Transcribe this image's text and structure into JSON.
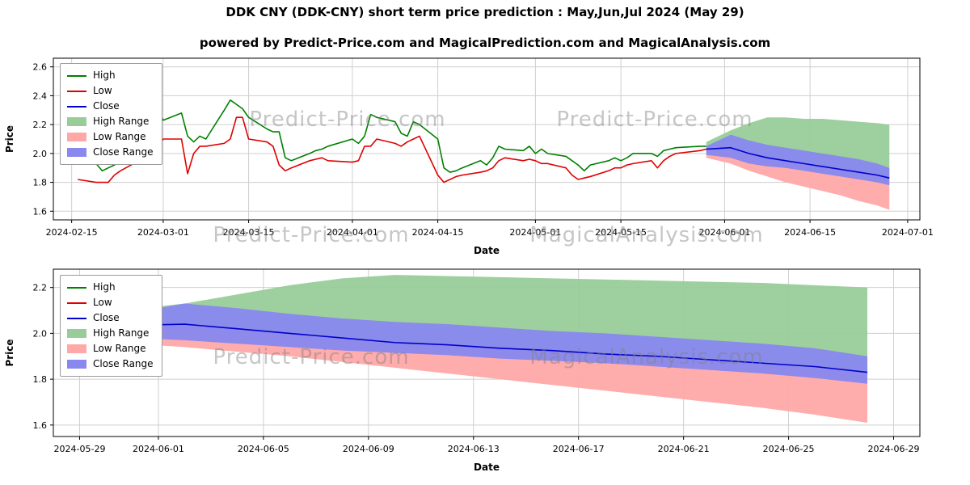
{
  "page": {
    "title": "DDK CNY (DDK-CNY) short term price prediction : May,Jun,Jul 2024 (May 29)",
    "subtitle": "powered by Predict-Price.com and MagicalPrediction.com and MagicalAnalysis.com"
  },
  "watermarks": {
    "top_left": "Predict-Price.com",
    "top_right": "Predict-Price.com",
    "mid_left": "Predict-Price.com",
    "mid_right": "MagicalAnalysis.com",
    "bottom_left": "Predict-Price.com",
    "bottom_right": "MagicalAnalysis.com"
  },
  "colors": {
    "high": "#008000",
    "low": "#e00000",
    "close": "#0000cd",
    "high_range": "#99cc99",
    "low_range": "#ffa8a8",
    "close_range": "#8888ee",
    "grid": "#cfcfcf"
  },
  "chart_data": [
    {
      "type": "line",
      "title": "",
      "xlabel": "Date",
      "ylabel": "Price",
      "ylim": [
        1.54,
        2.66
      ],
      "yticks": [
        1.6,
        1.8,
        2.0,
        2.2,
        2.4,
        2.6
      ],
      "xlim": [
        "2024-02-12",
        "2024-07-03"
      ],
      "xticks": [
        "2024-02-15",
        "2024-03-01",
        "2024-03-15",
        "2024-04-01",
        "2024-04-15",
        "2024-05-01",
        "2024-05-15",
        "2024-06-01",
        "2024-06-15",
        "2024-07-01"
      ],
      "bands": [
        {
          "name": "High Range",
          "color": "#99cc99",
          "x": [
            "2024-05-29",
            "2024-06-02",
            "2024-06-05",
            "2024-06-08",
            "2024-06-11",
            "2024-06-14",
            "2024-06-17",
            "2024-06-20",
            "2024-06-23",
            "2024-06-26",
            "2024-06-28"
          ],
          "upper": [
            2.08,
            2.16,
            2.21,
            2.25,
            2.25,
            2.24,
            2.24,
            2.23,
            2.22,
            2.21,
            2.2
          ],
          "lower": [
            2.0,
            2.04,
            2.0,
            1.97,
            1.95,
            1.93,
            1.91,
            1.89,
            1.87,
            1.85,
            1.83
          ]
        },
        {
          "name": "Low Range",
          "color": "#ffa8a8",
          "x": [
            "2024-05-29",
            "2024-06-02",
            "2024-06-05",
            "2024-06-08",
            "2024-06-11",
            "2024-06-14",
            "2024-06-17",
            "2024-06-20",
            "2024-06-23",
            "2024-06-26",
            "2024-06-28"
          ],
          "upper": [
            2.02,
            2.04,
            2.0,
            1.97,
            1.95,
            1.93,
            1.91,
            1.89,
            1.87,
            1.85,
            1.83
          ],
          "lower": [
            1.97,
            1.93,
            1.88,
            1.84,
            1.8,
            1.77,
            1.74,
            1.71,
            1.67,
            1.64,
            1.61
          ]
        },
        {
          "name": "Close Range",
          "color": "#8888ee",
          "x": [
            "2024-05-29",
            "2024-06-02",
            "2024-06-05",
            "2024-06-08",
            "2024-06-11",
            "2024-06-14",
            "2024-06-17",
            "2024-06-20",
            "2024-06-23",
            "2024-06-26",
            "2024-06-28"
          ],
          "upper": [
            2.05,
            2.13,
            2.09,
            2.06,
            2.04,
            2.02,
            2.0,
            1.98,
            1.96,
            1.93,
            1.9
          ],
          "lower": [
            1.99,
            1.97,
            1.93,
            1.91,
            1.9,
            1.88,
            1.86,
            1.84,
            1.82,
            1.8,
            1.78
          ]
        }
      ],
      "series": [
        {
          "name": "High",
          "color": "#008000",
          "x": [
            "2024-02-16",
            "2024-02-19",
            "2024-02-20",
            "2024-02-21",
            "2024-02-22",
            "2024-02-23",
            "2024-02-26",
            "2024-02-27",
            "2024-02-28",
            "2024-02-29",
            "2024-03-01",
            "2024-03-04",
            "2024-03-05",
            "2024-03-06",
            "2024-03-07",
            "2024-03-08",
            "2024-03-11",
            "2024-03-12",
            "2024-03-13",
            "2024-03-14",
            "2024-03-15",
            "2024-03-18",
            "2024-03-19",
            "2024-03-20",
            "2024-03-21",
            "2024-03-22",
            "2024-03-25",
            "2024-03-26",
            "2024-03-27",
            "2024-03-28",
            "2024-04-01",
            "2024-04-02",
            "2024-04-03",
            "2024-04-04",
            "2024-04-05",
            "2024-04-08",
            "2024-04-09",
            "2024-04-10",
            "2024-04-11",
            "2024-04-12",
            "2024-04-15",
            "2024-04-16",
            "2024-04-17",
            "2024-04-18",
            "2024-04-19",
            "2024-04-22",
            "2024-04-23",
            "2024-04-24",
            "2024-04-25",
            "2024-04-26",
            "2024-04-29",
            "2024-04-30",
            "2024-05-01",
            "2024-05-02",
            "2024-05-03",
            "2024-05-06",
            "2024-05-07",
            "2024-05-08",
            "2024-05-09",
            "2024-05-10",
            "2024-05-13",
            "2024-05-14",
            "2024-05-15",
            "2024-05-16",
            "2024-05-17",
            "2024-05-20",
            "2024-05-21",
            "2024-05-22",
            "2024-05-23",
            "2024-05-24",
            "2024-05-28",
            "2024-05-29"
          ],
          "y": [
            2.6,
            1.93,
            1.88,
            1.9,
            1.92,
            1.95,
            2.05,
            2.1,
            2.18,
            2.3,
            2.23,
            2.28,
            2.12,
            2.08,
            2.12,
            2.1,
            2.3,
            2.37,
            2.34,
            2.31,
            2.25,
            2.17,
            2.15,
            2.15,
            1.97,
            1.95,
            2.0,
            2.02,
            2.03,
            2.05,
            2.1,
            2.07,
            2.12,
            2.27,
            2.25,
            2.22,
            2.14,
            2.12,
            2.22,
            2.2,
            2.1,
            1.9,
            1.87,
            1.88,
            1.9,
            1.95,
            1.92,
            1.97,
            2.05,
            2.03,
            2.02,
            2.05,
            2.0,
            2.03,
            2.0,
            1.98,
            1.95,
            1.92,
            1.88,
            1.92,
            1.95,
            1.97,
            1.95,
            1.97,
            2.0,
            2.0,
            1.98,
            2.02,
            2.03,
            2.04,
            2.05,
            2.05
          ]
        },
        {
          "name": "Low",
          "color": "#e00000",
          "x": [
            "2024-02-16",
            "2024-02-19",
            "2024-02-20",
            "2024-02-21",
            "2024-02-22",
            "2024-02-23",
            "2024-02-26",
            "2024-02-27",
            "2024-02-28",
            "2024-02-29",
            "2024-03-01",
            "2024-03-04",
            "2024-03-05",
            "2024-03-06",
            "2024-03-07",
            "2024-03-08",
            "2024-03-11",
            "2024-03-12",
            "2024-03-13",
            "2024-03-14",
            "2024-03-15",
            "2024-03-18",
            "2024-03-19",
            "2024-03-20",
            "2024-03-21",
            "2024-03-22",
            "2024-03-25",
            "2024-03-26",
            "2024-03-27",
            "2024-03-28",
            "2024-04-01",
            "2024-04-02",
            "2024-04-03",
            "2024-04-04",
            "2024-04-05",
            "2024-04-08",
            "2024-04-09",
            "2024-04-10",
            "2024-04-11",
            "2024-04-12",
            "2024-04-15",
            "2024-04-16",
            "2024-04-17",
            "2024-04-18",
            "2024-04-19",
            "2024-04-22",
            "2024-04-23",
            "2024-04-24",
            "2024-04-25",
            "2024-04-26",
            "2024-04-29",
            "2024-04-30",
            "2024-05-01",
            "2024-05-02",
            "2024-05-03",
            "2024-05-06",
            "2024-05-07",
            "2024-05-08",
            "2024-05-09",
            "2024-05-10",
            "2024-05-13",
            "2024-05-14",
            "2024-05-15",
            "2024-05-16",
            "2024-05-17",
            "2024-05-20",
            "2024-05-21",
            "2024-05-22",
            "2024-05-23",
            "2024-05-24",
            "2024-05-28",
            "2024-05-29"
          ],
          "y": [
            1.82,
            1.8,
            1.8,
            1.8,
            1.85,
            1.88,
            1.95,
            2.0,
            2.02,
            2.05,
            2.1,
            2.1,
            1.86,
            2.0,
            2.05,
            2.05,
            2.07,
            2.1,
            2.25,
            2.25,
            2.1,
            2.08,
            2.05,
            1.92,
            1.88,
            1.9,
            1.95,
            1.96,
            1.97,
            1.95,
            1.94,
            1.95,
            2.05,
            2.05,
            2.1,
            2.07,
            2.05,
            2.08,
            2.1,
            2.12,
            1.85,
            1.8,
            1.82,
            1.84,
            1.85,
            1.87,
            1.88,
            1.9,
            1.95,
            1.97,
            1.95,
            1.96,
            1.95,
            1.93,
            1.93,
            1.9,
            1.85,
            1.82,
            1.83,
            1.84,
            1.88,
            1.9,
            1.9,
            1.92,
            1.93,
            1.95,
            1.9,
            1.95,
            1.98,
            2.0,
            2.02,
            2.03
          ]
        },
        {
          "name": "Close",
          "color": "#0000cd",
          "x": [
            "2024-05-29",
            "2024-06-02",
            "2024-06-05",
            "2024-06-08",
            "2024-06-11",
            "2024-06-14",
            "2024-06-17",
            "2024-06-20",
            "2024-06-23",
            "2024-06-26",
            "2024-06-28"
          ],
          "y": [
            2.03,
            2.04,
            2.0,
            1.97,
            1.95,
            1.93,
            1.91,
            1.89,
            1.87,
            1.85,
            1.83
          ]
        }
      ],
      "legend": [
        {
          "label": "High",
          "type": "line",
          "color": "#008000"
        },
        {
          "label": "Low",
          "type": "line",
          "color": "#e00000"
        },
        {
          "label": "Close",
          "type": "line",
          "color": "#0000cd"
        },
        {
          "label": "High Range",
          "type": "patch",
          "color": "#99cc99"
        },
        {
          "label": "Low Range",
          "type": "patch",
          "color": "#ffa8a8"
        },
        {
          "label": "Close Range",
          "type": "patch",
          "color": "#8888ee"
        }
      ]
    },
    {
      "type": "line",
      "title": "",
      "xlabel": "Date",
      "ylabel": "Price",
      "ylim": [
        1.55,
        2.28
      ],
      "yticks": [
        1.6,
        1.8,
        2.0,
        2.2
      ],
      "xlim": [
        "2024-05-28",
        "2024-06-30"
      ],
      "xticks": [
        "2024-05-29",
        "2024-06-01",
        "2024-06-05",
        "2024-06-09",
        "2024-06-13",
        "2024-06-17",
        "2024-06-21",
        "2024-06-25",
        "2024-06-29"
      ],
      "bands": [
        {
          "name": "High Range",
          "color": "#99cc99",
          "x": [
            "2024-05-29",
            "2024-05-31",
            "2024-06-02",
            "2024-06-04",
            "2024-06-06",
            "2024-06-08",
            "2024-06-10",
            "2024-06-12",
            "2024-06-14",
            "2024-06-16",
            "2024-06-18",
            "2024-06-20",
            "2024-06-22",
            "2024-06-24",
            "2024-06-26",
            "2024-06-28"
          ],
          "upper": [
            2.08,
            2.105,
            2.13,
            2.17,
            2.21,
            2.24,
            2.255,
            2.25,
            2.245,
            2.24,
            2.235,
            2.23,
            2.225,
            2.22,
            2.21,
            2.2
          ],
          "lower": [
            2.03,
            2.035,
            2.04,
            2.02,
            2.0,
            1.98,
            1.96,
            1.95,
            1.935,
            1.925,
            1.91,
            1.9,
            1.885,
            1.87,
            1.855,
            1.83
          ]
        },
        {
          "name": "Low Range",
          "color": "#ffa8a8",
          "x": [
            "2024-05-29",
            "2024-05-31",
            "2024-06-02",
            "2024-06-04",
            "2024-06-06",
            "2024-06-08",
            "2024-06-10",
            "2024-06-12",
            "2024-06-14",
            "2024-06-16",
            "2024-06-18",
            "2024-06-20",
            "2024-06-22",
            "2024-06-24",
            "2024-06-26",
            "2024-06-28"
          ],
          "upper": [
            2.03,
            2.035,
            2.04,
            2.02,
            2.0,
            1.98,
            1.96,
            1.95,
            1.935,
            1.925,
            1.91,
            1.9,
            1.885,
            1.87,
            1.855,
            1.83
          ],
          "lower": [
            1.97,
            1.955,
            1.94,
            1.92,
            1.9,
            1.875,
            1.85,
            1.825,
            1.8,
            1.775,
            1.75,
            1.725,
            1.7,
            1.675,
            1.645,
            1.61
          ]
        },
        {
          "name": "Close Range",
          "color": "#8888ee",
          "x": [
            "2024-05-29",
            "2024-05-31",
            "2024-06-02",
            "2024-06-04",
            "2024-06-06",
            "2024-06-08",
            "2024-06-10",
            "2024-06-12",
            "2024-06-14",
            "2024-06-16",
            "2024-06-18",
            "2024-06-20",
            "2024-06-22",
            "2024-06-24",
            "2024-06-26",
            "2024-06-28"
          ],
          "upper": [
            2.05,
            2.09,
            2.13,
            2.11,
            2.085,
            2.065,
            2.05,
            2.04,
            2.025,
            2.01,
            2.0,
            1.985,
            1.97,
            1.955,
            1.935,
            1.9
          ],
          "lower": [
            1.99,
            1.98,
            1.97,
            1.955,
            1.94,
            1.925,
            1.915,
            1.905,
            1.89,
            1.88,
            1.87,
            1.855,
            1.84,
            1.825,
            1.805,
            1.78
          ]
        }
      ],
      "series": [
        {
          "name": "Close",
          "color": "#0000cd",
          "x": [
            "2024-05-29",
            "2024-05-31",
            "2024-06-02",
            "2024-06-04",
            "2024-06-06",
            "2024-06-08",
            "2024-06-10",
            "2024-06-12",
            "2024-06-14",
            "2024-06-16",
            "2024-06-18",
            "2024-06-20",
            "2024-06-22",
            "2024-06-24",
            "2024-06-26",
            "2024-06-28"
          ],
          "y": [
            2.03,
            2.035,
            2.04,
            2.02,
            2.0,
            1.98,
            1.96,
            1.95,
            1.935,
            1.925,
            1.91,
            1.9,
            1.885,
            1.87,
            1.855,
            1.83
          ]
        }
      ],
      "legend": [
        {
          "label": "High",
          "type": "line",
          "color": "#008000"
        },
        {
          "label": "Low",
          "type": "line",
          "color": "#e00000"
        },
        {
          "label": "Close",
          "type": "line",
          "color": "#0000cd"
        },
        {
          "label": "High Range",
          "type": "patch",
          "color": "#99cc99"
        },
        {
          "label": "Low Range",
          "type": "patch",
          "color": "#ffa8a8"
        },
        {
          "label": "Close Range",
          "type": "patch",
          "color": "#8888ee"
        }
      ]
    }
  ]
}
